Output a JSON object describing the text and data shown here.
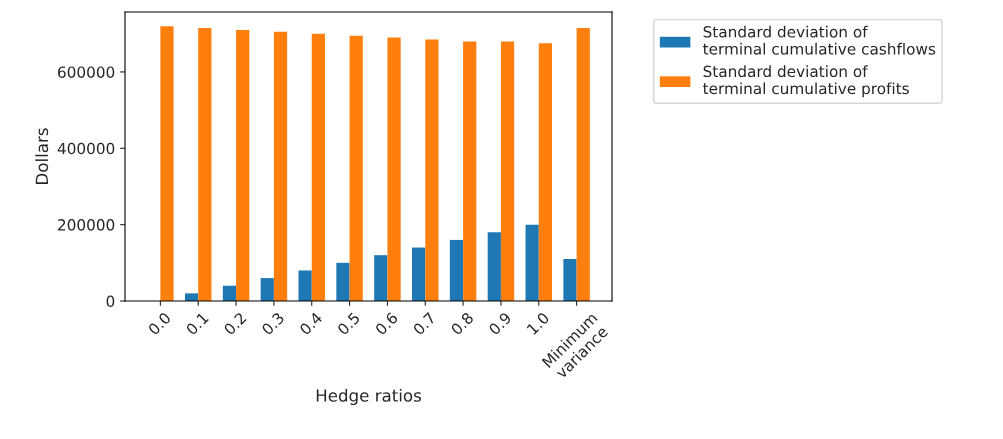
{
  "chart_data": {
    "type": "bar",
    "xlabel": "Hedge ratios",
    "ylabel": "Dollars",
    "categories": [
      "0.0",
      "0.1",
      "0.2",
      "0.3",
      "0.4",
      "0.5",
      "0.6",
      "0.7",
      "0.8",
      "0.9",
      "1.0",
      "Minimum\nvariance"
    ],
    "series": [
      {
        "name": "Standard deviation of\nterminal cumulative cashflows",
        "color": "#1f77b4",
        "values": [
          0,
          20000,
          40000,
          60000,
          80000,
          100000,
          120000,
          140000,
          160000,
          180000,
          200000,
          110000
        ]
      },
      {
        "name": "Standard deviation of\nterminal cumulative profits",
        "color": "#ff7f0e",
        "values": [
          720000,
          715000,
          710000,
          705000,
          700000,
          695000,
          690000,
          685000,
          680000,
          680000,
          675000,
          715000
        ]
      }
    ],
    "ylim": [
      0,
      757000
    ],
    "yticks": [
      0,
      200000,
      400000,
      600000
    ],
    "grid": false,
    "legend": "top right"
  }
}
